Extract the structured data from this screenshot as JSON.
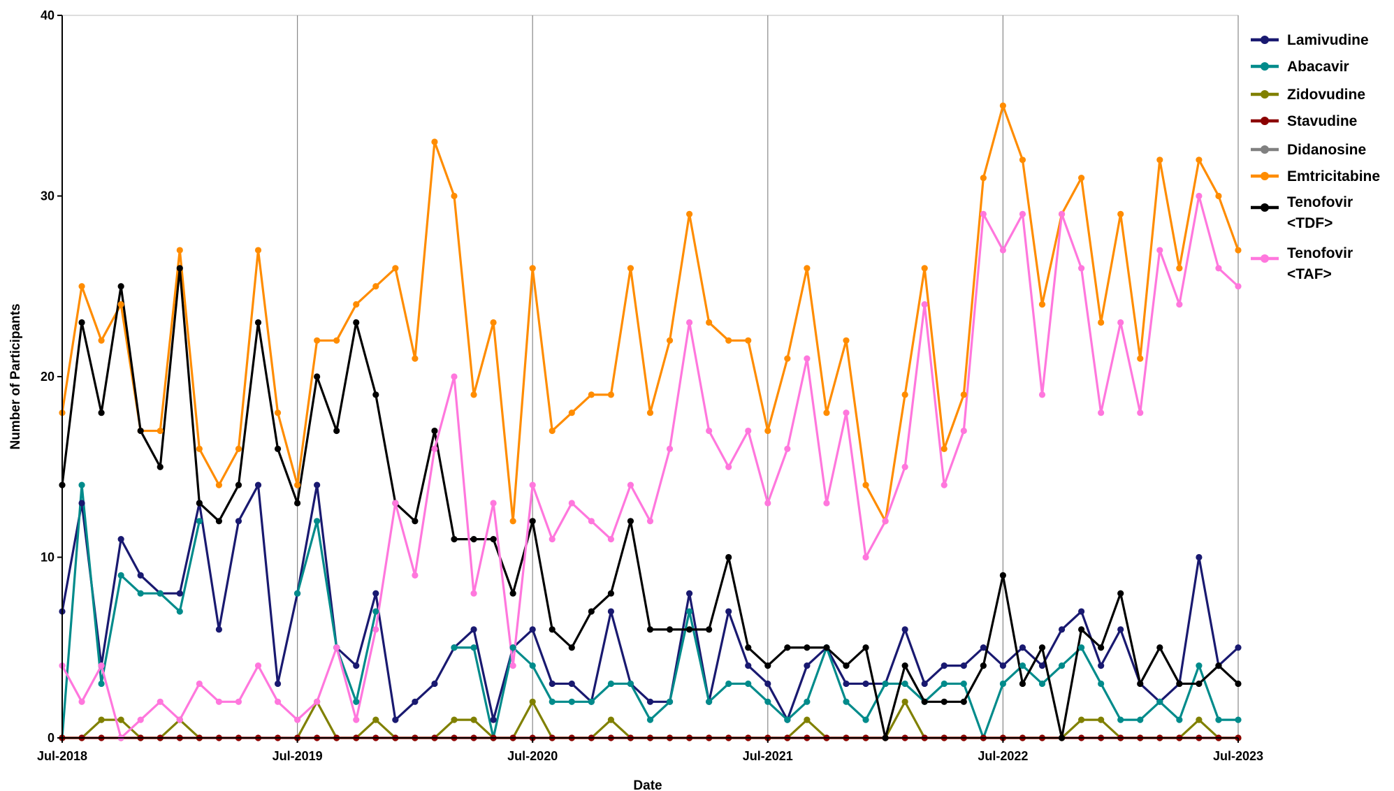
{
  "chart_data": {
    "type": "line",
    "title": "",
    "xlabel": "Date",
    "ylabel": "Number of Participants",
    "ylim": [
      0,
      40
    ],
    "y_ticks": [
      0,
      10,
      20,
      30,
      40
    ],
    "x_tick_labels": [
      "Jul-2018",
      "Jul-2019",
      "Jul-2020",
      "Jul-2021",
      "Jul-2022",
      "Jul-2023"
    ],
    "x_tick_indices": [
      0,
      12,
      24,
      36,
      48,
      60
    ],
    "x_start": "Jul-2018",
    "x_end": "Jul-2023",
    "grid": "vertical at year ticks",
    "legend_position": "right",
    "series": [
      {
        "name": "Lamivudine",
        "color": "#191970",
        "values": [
          7,
          13,
          4,
          11,
          9,
          8,
          8,
          13,
          6,
          12,
          14,
          3,
          8,
          14,
          5,
          4,
          8,
          1,
          2,
          3,
          5,
          6,
          1,
          5,
          6,
          3,
          3,
          2,
          7,
          3,
          2,
          2,
          8,
          2,
          7,
          4,
          3,
          1,
          4,
          5,
          3,
          3,
          3,
          6,
          3,
          4,
          4,
          5,
          4,
          5,
          4,
          6,
          7,
          4,
          6,
          3,
          2,
          3,
          10,
          4,
          5
        ]
      },
      {
        "name": "Abacavir",
        "color": "#008b8b",
        "values": [
          0,
          14,
          3,
          9,
          8,
          8,
          7,
          12,
          null,
          null,
          null,
          null,
          8,
          12,
          5,
          2,
          7,
          null,
          null,
          null,
          5,
          5,
          0,
          5,
          4,
          2,
          2,
          2,
          3,
          3,
          1,
          2,
          7,
          2,
          3,
          3,
          2,
          1,
          2,
          5,
          2,
          1,
          3,
          3,
          2,
          3,
          3,
          0,
          3,
          4,
          3,
          4,
          5,
          3,
          1,
          1,
          2,
          1,
          4,
          1,
          1
        ]
      },
      {
        "name": "Zidovudine",
        "color": "#808000",
        "values": [
          0,
          0,
          1,
          1,
          0,
          0,
          1,
          0,
          null,
          null,
          null,
          null,
          0,
          2,
          0,
          0,
          1,
          0,
          0,
          0,
          1,
          1,
          0,
          0,
          2,
          0,
          0,
          0,
          1,
          0,
          0,
          0,
          0,
          0,
          0,
          0,
          0,
          0,
          1,
          0,
          0,
          0,
          0,
          2,
          0,
          0,
          0,
          0,
          0,
          0,
          0,
          0,
          1,
          1,
          0,
          0,
          0,
          0,
          1,
          0,
          0
        ]
      },
      {
        "name": "Stavudine",
        "color": "#8b0000",
        "values": [
          0,
          0,
          0,
          0,
          0,
          0,
          0,
          0,
          0,
          0,
          0,
          0,
          0,
          0,
          0,
          0,
          0,
          0,
          0,
          0,
          0,
          0,
          0,
          0,
          0,
          0,
          0,
          0,
          0,
          0,
          0,
          0,
          0,
          0,
          0,
          0,
          0,
          0,
          0,
          0,
          0,
          0,
          0,
          0,
          0,
          0,
          0,
          0,
          0,
          0,
          0,
          0,
          0,
          0,
          0,
          0,
          0,
          0,
          0,
          0,
          0
        ]
      },
      {
        "name": "Didanosine",
        "color": "#808080",
        "values": []
      },
      {
        "name": "Emtricitabine",
        "color": "#ff8c00",
        "values": [
          18,
          25,
          22,
          24,
          17,
          17,
          27,
          16,
          14,
          16,
          27,
          18,
          14,
          22,
          22,
          24,
          25,
          26,
          21,
          33,
          30,
          19,
          23,
          12,
          26,
          17,
          18,
          19,
          19,
          26,
          18,
          22,
          29,
          23,
          22,
          22,
          17,
          21,
          26,
          18,
          22,
          14,
          12,
          19,
          26,
          16,
          19,
          31,
          35,
          32,
          24,
          29,
          31,
          23,
          29,
          21,
          32,
          26,
          32,
          30,
          27
        ]
      },
      {
        "name": "Tenofovir <TDF>",
        "color": "#000000",
        "values": [
          14,
          23,
          18,
          25,
          17,
          15,
          26,
          13,
          12,
          14,
          23,
          16,
          13,
          20,
          17,
          23,
          19,
          13,
          12,
          17,
          11,
          11,
          11,
          8,
          12,
          6,
          5,
          7,
          8,
          12,
          6,
          6,
          6,
          6,
          10,
          5,
          4,
          5,
          5,
          5,
          4,
          5,
          0,
          4,
          2,
          2,
          2,
          4,
          9,
          3,
          5,
          0,
          6,
          5,
          8,
          3,
          5,
          3,
          3,
          4,
          3
        ]
      },
      {
        "name": "Tenofovir <TAF>",
        "color": "#ff77dd",
        "values": [
          4,
          2,
          4,
          0,
          1,
          2,
          1,
          3,
          2,
          2,
          4,
          2,
          1,
          2,
          5,
          1,
          6,
          13,
          9,
          16,
          20,
          8,
          13,
          4,
          14,
          11,
          13,
          12,
          11,
          14,
          12,
          16,
          23,
          17,
          15,
          17,
          13,
          16,
          21,
          13,
          18,
          10,
          12,
          15,
          24,
          14,
          17,
          29,
          27,
          29,
          19,
          29,
          26,
          18,
          23,
          18,
          27,
          24,
          30,
          26,
          25
        ]
      }
    ]
  }
}
